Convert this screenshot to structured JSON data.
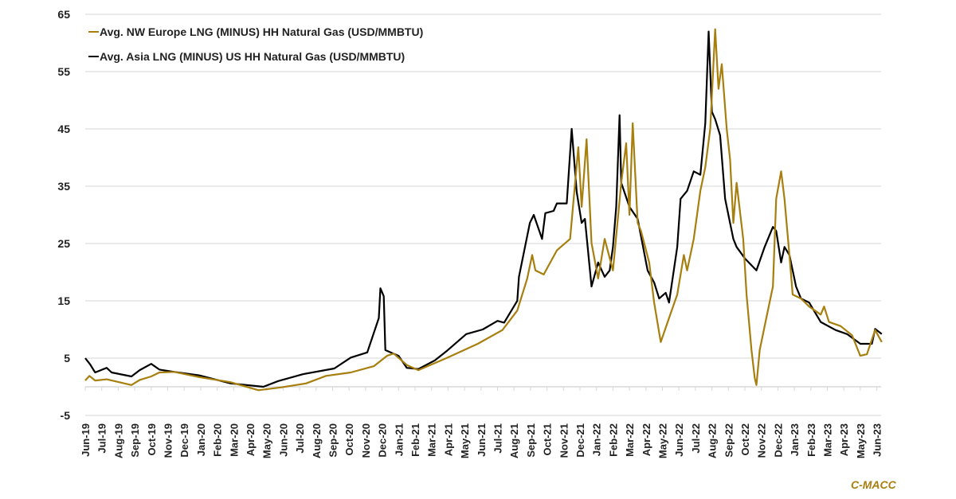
{
  "chart_data": {
    "type": "line",
    "title": "",
    "xlabel": "",
    "ylabel": "",
    "ylim": [
      -5,
      65
    ],
    "yticks": [
      -5,
      5,
      15,
      25,
      35,
      45,
      55,
      65
    ],
    "grid": true,
    "legend_position": "top-left",
    "x_unit": "month index (0 = Jun-19)",
    "categories": [
      "Jun-19",
      "Jul-19",
      "Aug-19",
      "Sep-19",
      "Oct-19",
      "Nov-19",
      "Dec-19",
      "Jan-20",
      "Feb-20",
      "Mar-20",
      "Apr-20",
      "May-20",
      "Jun-20",
      "Jul-20",
      "Aug-20",
      "Sep-20",
      "Oct-20",
      "Nov-20",
      "Dec-20",
      "Jan-21",
      "Feb-21",
      "Mar-21",
      "Apr-21",
      "May-21",
      "Jun-21",
      "Jul-21",
      "Aug-21",
      "Sep-21",
      "Oct-21",
      "Nov-21",
      "Dec-21",
      "Jan-22",
      "Feb-22",
      "Mar-22",
      "Apr-22",
      "May-22",
      "Jun-22",
      "Jul-22",
      "Aug-22",
      "Sep-22",
      "Oct-22",
      "Nov-22",
      "Dec-22",
      "Jan-23",
      "Feb-23",
      "Mar-23",
      "Apr-23",
      "May-23",
      "Jun-23"
    ],
    "series": [
      {
        "name": "Avg. NW Europe LNG (MINUS) HH Natural Gas (USD/MMBTU)",
        "color": "#A77F0E",
        "points": [
          [
            0,
            1.1
          ],
          [
            0.25,
            1.9
          ],
          [
            0.6,
            1.1
          ],
          [
            1.3,
            1.3
          ],
          [
            2.8,
            0.3
          ],
          [
            3.3,
            1.2
          ],
          [
            4.0,
            1.8
          ],
          [
            4.5,
            2.5
          ],
          [
            5.4,
            2.6
          ],
          [
            6.9,
            1.7
          ],
          [
            8.8,
            0.8
          ],
          [
            10.5,
            -0.6
          ],
          [
            11.9,
            -0.1
          ],
          [
            13.4,
            0.6
          ],
          [
            14.6,
            1.9
          ],
          [
            16.1,
            2.5
          ],
          [
            17.5,
            3.6
          ],
          [
            18.3,
            5.4
          ],
          [
            18.7,
            5.8
          ],
          [
            19.5,
            3.8
          ],
          [
            20.2,
            2.9
          ],
          [
            21.9,
            5.0
          ],
          [
            23.8,
            7.5
          ],
          [
            25.3,
            9.9
          ],
          [
            26.2,
            13.3
          ],
          [
            26.8,
            18.9
          ],
          [
            27.1,
            23.0
          ],
          [
            27.3,
            20.3
          ],
          [
            27.8,
            19.6
          ],
          [
            28.6,
            23.8
          ],
          [
            29.4,
            25.8
          ],
          [
            29.9,
            41.8
          ],
          [
            30.1,
            31.4
          ],
          [
            30.4,
            43.2
          ],
          [
            30.7,
            25.1
          ],
          [
            31.1,
            18.9
          ],
          [
            31.5,
            25.8
          ],
          [
            32.0,
            20.3
          ],
          [
            32.5,
            35.6
          ],
          [
            32.8,
            42.5
          ],
          [
            33.0,
            30.0
          ],
          [
            33.2,
            46.0
          ],
          [
            33.5,
            28.6
          ],
          [
            33.7,
            27.2
          ],
          [
            34.2,
            21.7
          ],
          [
            34.5,
            14.7
          ],
          [
            34.9,
            7.8
          ],
          [
            35.4,
            12.0
          ],
          [
            35.9,
            16.1
          ],
          [
            36.3,
            23.0
          ],
          [
            36.5,
            20.3
          ],
          [
            36.9,
            25.8
          ],
          [
            37.3,
            34.2
          ],
          [
            37.6,
            38.3
          ],
          [
            37.9,
            45.0
          ],
          [
            38.2,
            62.4
          ],
          [
            38.4,
            52.0
          ],
          [
            38.6,
            56.3
          ],
          [
            38.9,
            45.0
          ],
          [
            39.1,
            39.7
          ],
          [
            39.3,
            28.6
          ],
          [
            39.5,
            35.6
          ],
          [
            39.9,
            25.8
          ],
          [
            40.1,
            16.1
          ],
          [
            40.4,
            6.4
          ],
          [
            40.6,
            1.5
          ],
          [
            40.7,
            0.3
          ],
          [
            40.9,
            6.4
          ],
          [
            41.3,
            12.0
          ],
          [
            41.7,
            17.5
          ],
          [
            41.9,
            32.8
          ],
          [
            42.2,
            37.6
          ],
          [
            42.4,
            32.8
          ],
          [
            42.7,
            23.0
          ],
          [
            42.9,
            16.1
          ],
          [
            43.4,
            15.4
          ],
          [
            43.9,
            14.0
          ],
          [
            44.6,
            12.6
          ],
          [
            44.8,
            14.0
          ],
          [
            45.1,
            11.3
          ],
          [
            45.8,
            10.6
          ],
          [
            46.5,
            9.0
          ],
          [
            47.0,
            5.4
          ],
          [
            47.4,
            5.7
          ],
          [
            47.9,
            9.9
          ],
          [
            48.3,
            7.8
          ]
        ]
      },
      {
        "name": "Avg. Asia LNG (MINUS) US HH Natural Gas (USD/MMBTU)",
        "color": "#000000",
        "points": [
          [
            0,
            5.0
          ],
          [
            0.3,
            3.9
          ],
          [
            0.6,
            2.5
          ],
          [
            1.3,
            3.3
          ],
          [
            1.6,
            2.5
          ],
          [
            2.8,
            1.8
          ],
          [
            3.3,
            2.9
          ],
          [
            4.0,
            4.0
          ],
          [
            4.5,
            3.0
          ],
          [
            5.4,
            2.6
          ],
          [
            6.9,
            2.0
          ],
          [
            8.8,
            0.6
          ],
          [
            10.8,
            0.0
          ],
          [
            11.7,
            1.0
          ],
          [
            13.2,
            2.2
          ],
          [
            15.1,
            3.2
          ],
          [
            16.1,
            5.1
          ],
          [
            17.1,
            6.0
          ],
          [
            17.8,
            12.0
          ],
          [
            17.9,
            17.2
          ],
          [
            18.1,
            15.8
          ],
          [
            18.2,
            6.4
          ],
          [
            19.0,
            5.4
          ],
          [
            19.5,
            3.3
          ],
          [
            20.2,
            3.1
          ],
          [
            21.2,
            4.6
          ],
          [
            21.9,
            6.2
          ],
          [
            23.1,
            9.2
          ],
          [
            24.1,
            10.0
          ],
          [
            25.0,
            11.5
          ],
          [
            25.4,
            11.2
          ],
          [
            26.2,
            15.0
          ],
          [
            26.3,
            19.2
          ],
          [
            26.96,
            28.6
          ],
          [
            27.2,
            30.0
          ],
          [
            27.7,
            25.8
          ],
          [
            27.9,
            30.3
          ],
          [
            28.4,
            30.7
          ],
          [
            28.6,
            32.0
          ],
          [
            29.2,
            32.0
          ],
          [
            29.5,
            45.0
          ],
          [
            29.8,
            34.0
          ],
          [
            30.1,
            28.6
          ],
          [
            30.3,
            29.3
          ],
          [
            30.7,
            17.5
          ],
          [
            31.1,
            21.7
          ],
          [
            31.5,
            19.2
          ],
          [
            31.8,
            20.3
          ],
          [
            32.0,
            24.4
          ],
          [
            32.2,
            31.4
          ],
          [
            32.4,
            47.4
          ],
          [
            32.5,
            35.6
          ],
          [
            33.0,
            31.4
          ],
          [
            33.5,
            29.3
          ],
          [
            34.1,
            20.3
          ],
          [
            34.5,
            18.2
          ],
          [
            34.8,
            15.4
          ],
          [
            35.2,
            16.4
          ],
          [
            35.4,
            14.7
          ],
          [
            35.9,
            24.4
          ],
          [
            36.1,
            32.8
          ],
          [
            36.5,
            34.2
          ],
          [
            36.9,
            37.6
          ],
          [
            37.3,
            37.0
          ],
          [
            37.6,
            46.0
          ],
          [
            37.8,
            62.0
          ],
          [
            38.0,
            48.0
          ],
          [
            38.2,
            46.7
          ],
          [
            38.5,
            43.9
          ],
          [
            38.8,
            32.8
          ],
          [
            39.0,
            30.0
          ],
          [
            39.3,
            25.8
          ],
          [
            39.5,
            24.4
          ],
          [
            40.0,
            22.4
          ],
          [
            40.7,
            20.3
          ],
          [
            41.2,
            24.4
          ],
          [
            41.7,
            27.9
          ],
          [
            41.9,
            27.2
          ],
          [
            42.2,
            21.7
          ],
          [
            42.4,
            24.4
          ],
          [
            42.7,
            23.0
          ],
          [
            43.1,
            17.5
          ],
          [
            43.4,
            15.4
          ],
          [
            43.9,
            14.7
          ],
          [
            44.6,
            11.3
          ],
          [
            45.5,
            9.9
          ],
          [
            46.2,
            9.2
          ],
          [
            47.0,
            7.5
          ],
          [
            47.7,
            7.5
          ],
          [
            47.9,
            10.1
          ],
          [
            48.3,
            9.2
          ]
        ]
      }
    ],
    "source_label": "C-MACC",
    "source_color": "#A77F0E"
  }
}
